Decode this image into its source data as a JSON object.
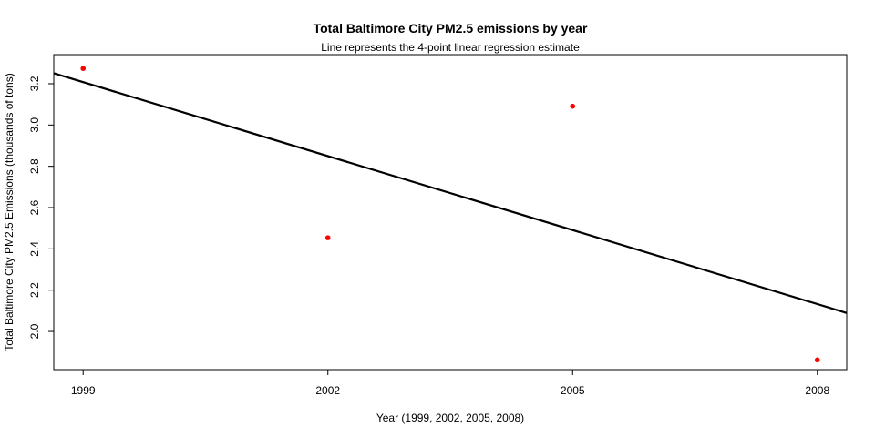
{
  "chart_data": {
    "type": "scatter",
    "title": "Total Baltimore City PM2.5 emissions by year",
    "subtitle": "Line represents the 4-point linear regression estimate",
    "xlabel": "Year (1999, 2002, 2005, 2008)",
    "ylabel": "Total Baltimore City PM2.5 Emissions (thousands of tons)",
    "x_ticks": [
      1999,
      2002,
      2005,
      2008
    ],
    "y_ticks": [
      2.0,
      2.2,
      2.4,
      2.6,
      2.8,
      3.0,
      3.2
    ],
    "y_tick_labels": [
      "2.0",
      "2.2",
      "2.4",
      "2.6",
      "2.8",
      "3.0",
      "3.2"
    ],
    "xlim": [
      1998.64,
      2008.36
    ],
    "ylim": [
      1.815,
      3.341
    ],
    "grid": false,
    "points": [
      {
        "x": 1999,
        "y": 3.274
      },
      {
        "x": 2002,
        "y": 2.454
      },
      {
        "x": 2005,
        "y": 3.091
      },
      {
        "x": 2008,
        "y": 1.862
      }
    ],
    "regression_line": {
      "intercept_at_1998_64": 3.251,
      "slope": -0.1195
    },
    "point_color": "#ff0000",
    "line_color": "#000000"
  }
}
